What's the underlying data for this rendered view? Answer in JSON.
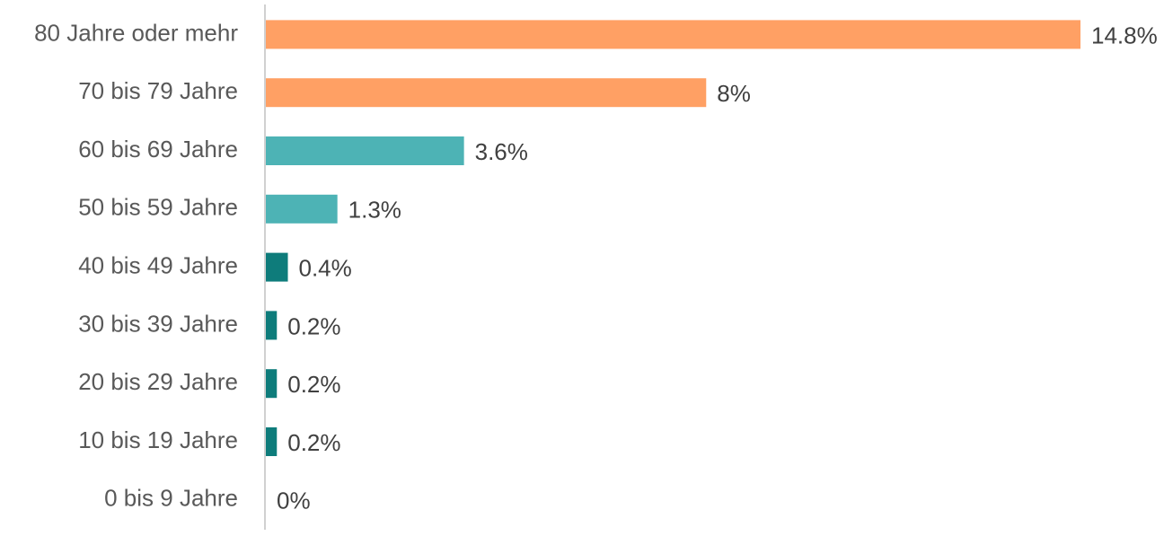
{
  "chart_data": {
    "type": "barh",
    "categories": [
      "80 Jahre oder mehr",
      "70 bis 79 Jahre",
      "60 bis 69 Jahre",
      "50 bis 59 Jahre",
      "40 bis 49 Jahre",
      "30 bis 39 Jahre",
      "20 bis 29 Jahre",
      "10 bis 19 Jahre",
      "0 bis 9 Jahre"
    ],
    "values": [
      14.8,
      8,
      3.6,
      1.3,
      0.4,
      0.2,
      0.2,
      0.2,
      0
    ],
    "value_labels": [
      "14.8%",
      "8%",
      "3.6%",
      "1.3%",
      "0.4%",
      "0.2%",
      "0.2%",
      "0.2%",
      "0%"
    ],
    "colors": [
      "#ffa064",
      "#ffa064",
      "#4db3b5",
      "#4db3b5",
      "#0e7c7b",
      "#0e7c7b",
      "#0e7c7b",
      "#0e7c7b",
      "#0e7c7b"
    ]
  }
}
